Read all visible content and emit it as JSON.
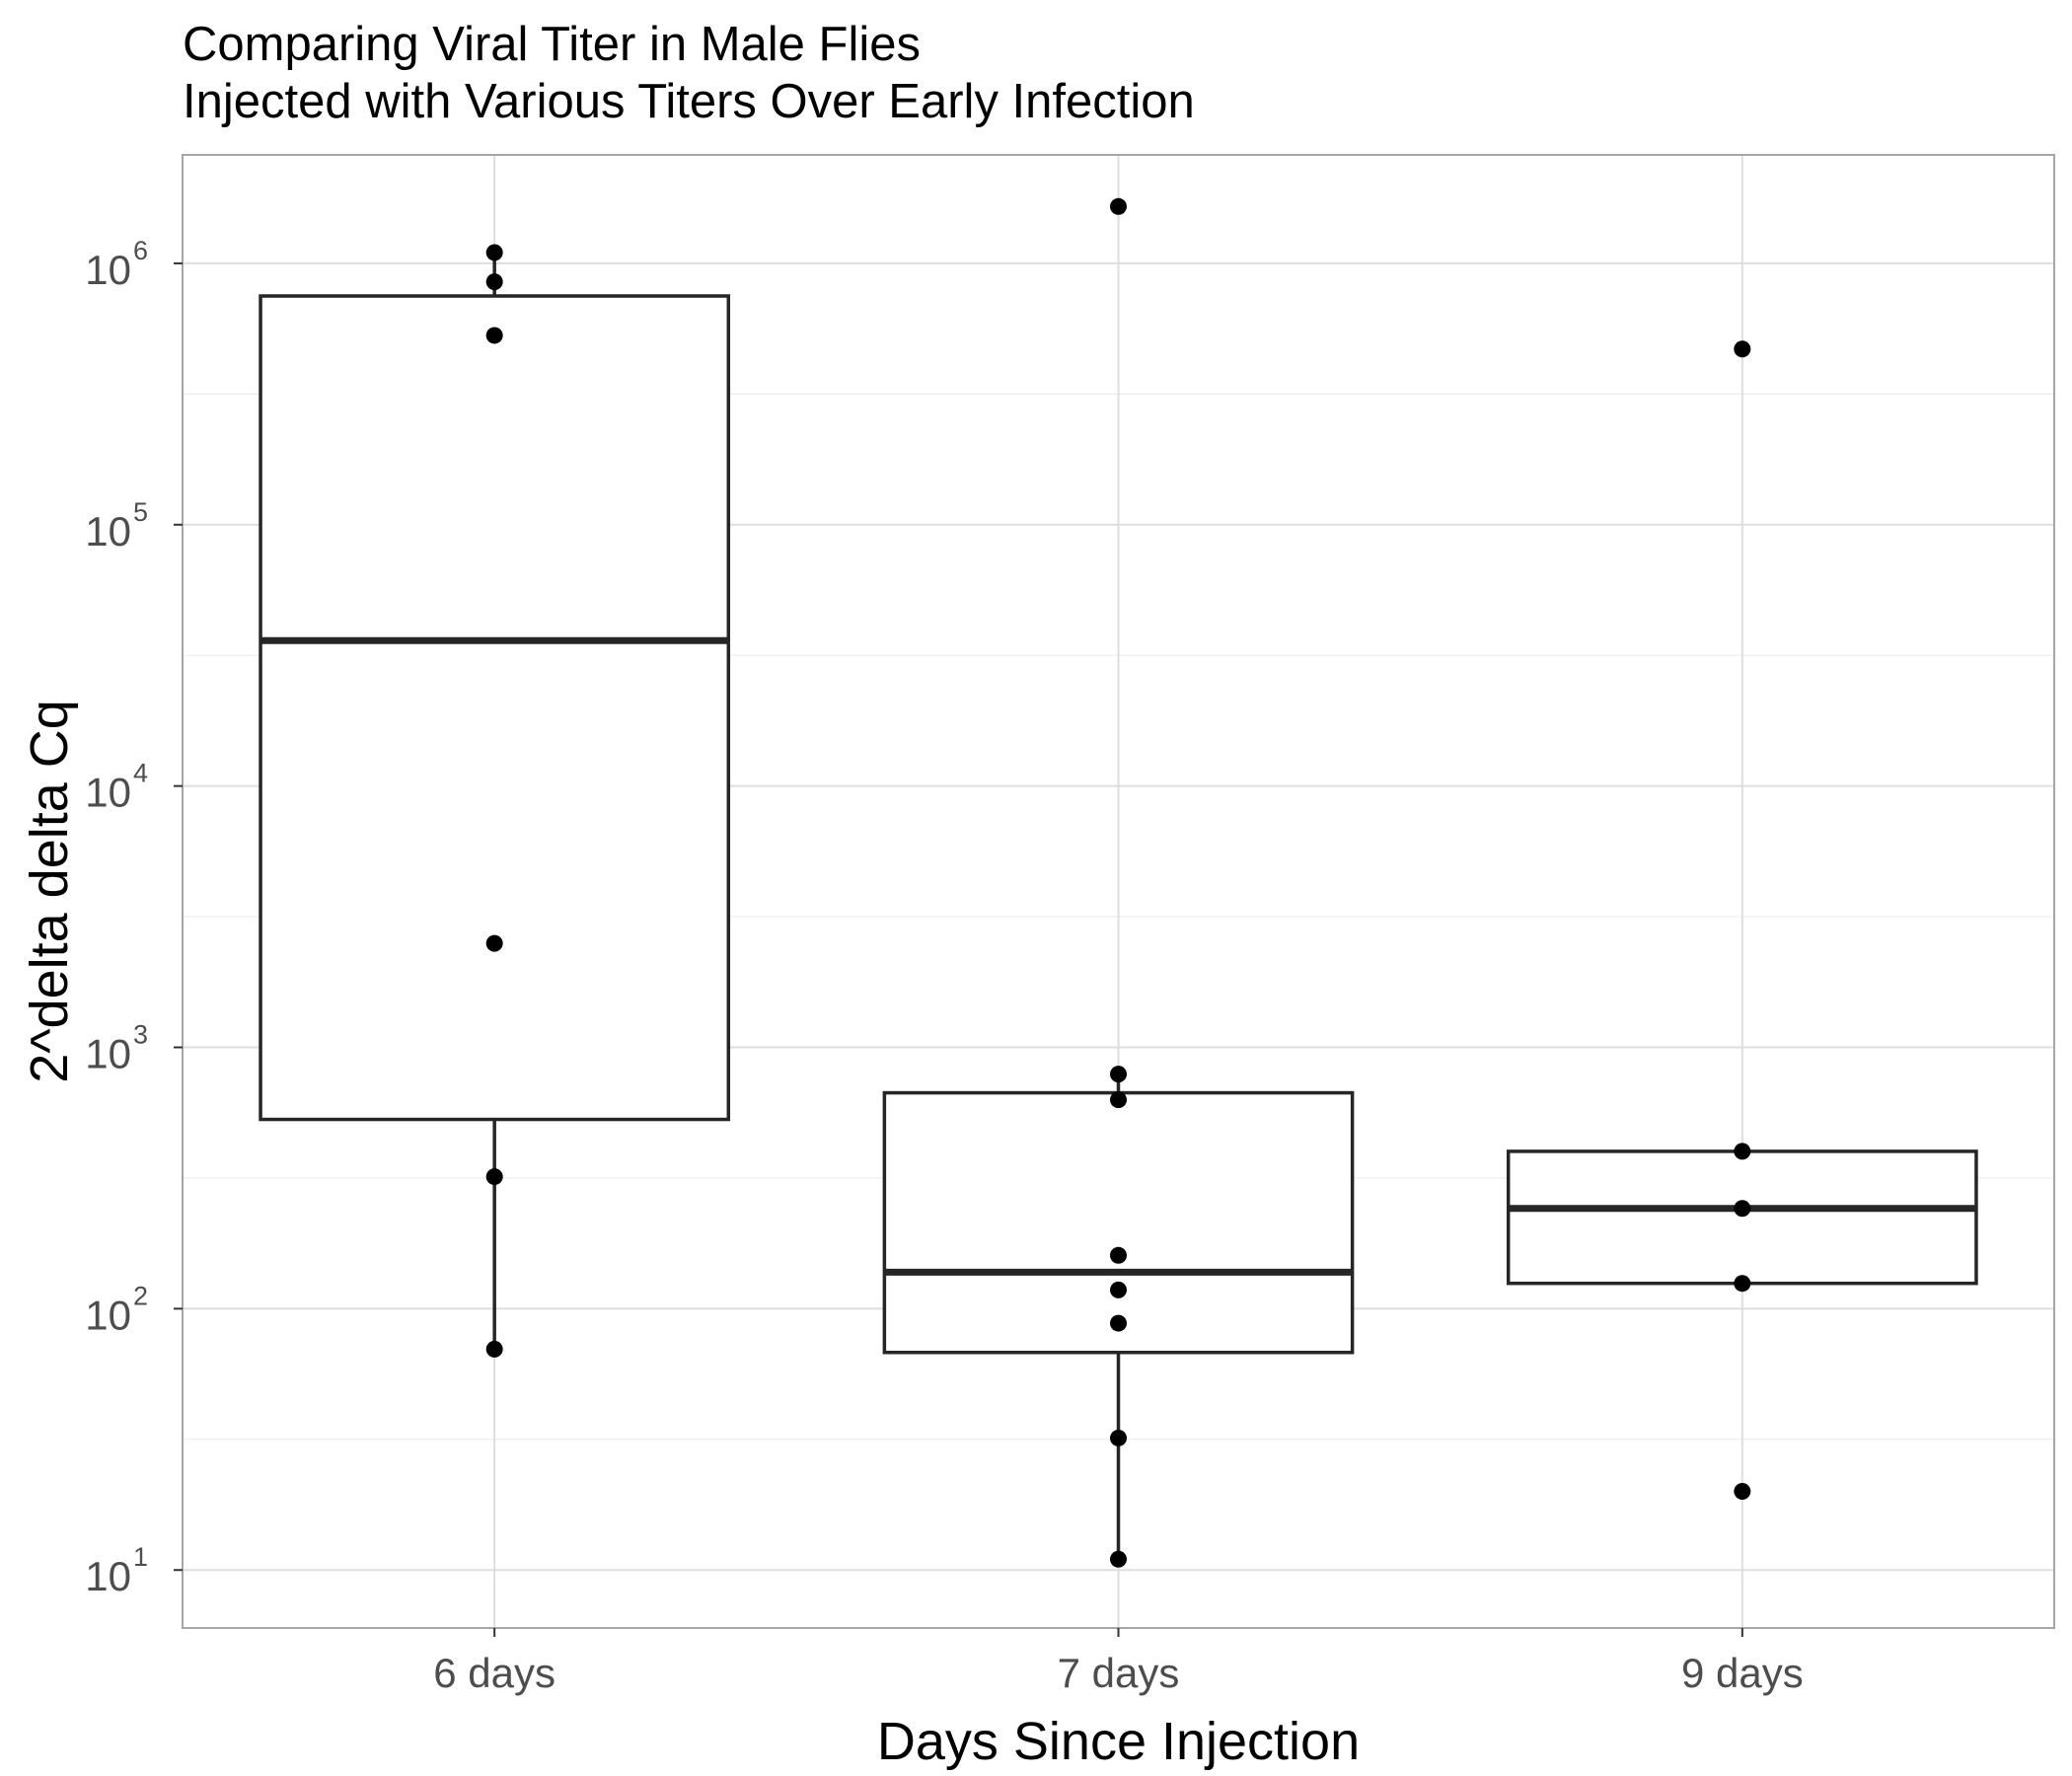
{
  "chart_data": {
    "type": "boxplot",
    "title": "Comparing Viral Titer in Male Flies",
    "subtitle": "Injected with Various Titers Over Early Infection",
    "xlabel": "Days Since Injection",
    "ylabel": "2^delta delta Cq",
    "yscale": "log10",
    "ylim": [
      6,
      2600000
    ],
    "grid": true,
    "categories": [
      "6 days",
      "7 days",
      "9 days"
    ],
    "yticks": [
      {
        "value": 10,
        "base": "10",
        "exp": "1"
      },
      {
        "value": 100,
        "base": "10",
        "exp": "2"
      },
      {
        "value": 1000,
        "base": "10",
        "exp": "3"
      },
      {
        "value": 10000,
        "base": "10",
        "exp": "4"
      },
      {
        "value": 100000,
        "base": "10",
        "exp": "5"
      },
      {
        "value": 1000000,
        "base": "10",
        "exp": "6"
      }
    ],
    "boxes": [
      {
        "category": "6 days",
        "whisker_low": 70,
        "q1": 530,
        "median": 36000,
        "q3": 750000,
        "whisker_high": 1100000
      },
      {
        "category": "7 days",
        "whisker_low": 11,
        "q1": 68,
        "median": 138,
        "q3": 670,
        "whisker_high": 790
      },
      {
        "category": "9 days",
        "whisker_low": 125,
        "q1": 125,
        "median": 242,
        "q3": 400,
        "whisker_high": 400
      }
    ],
    "points": [
      {
        "category": "6 days",
        "values": [
          1100000,
          850000,
          530000,
          2500,
          320,
          70
        ]
      },
      {
        "category": "7 days",
        "values": [
          1650000,
          790,
          630,
          160,
          118,
          88,
          32,
          11
        ]
      },
      {
        "category": "9 days",
        "values": [
          470000,
          400,
          242,
          125,
          20
        ]
      }
    ]
  }
}
